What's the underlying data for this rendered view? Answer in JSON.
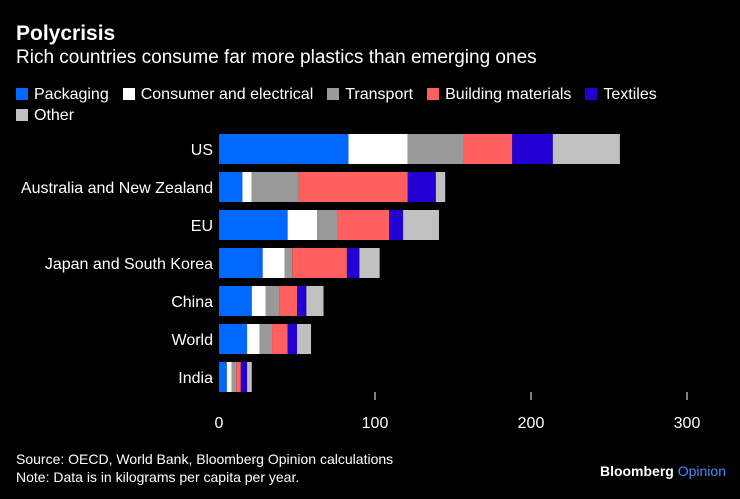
{
  "title": "Polycrisis",
  "subtitle": "Rich countries consume far more plastics than emerging ones",
  "source": "Source: OECD, World Bank, Bloomberg Opinion calculations",
  "note": "Note: Data is in kilograms per capita per year.",
  "logo": {
    "brand": "Bloomberg",
    "suffix": "Opinion",
    "suffix_color": "#4a8cff"
  },
  "chart_data": {
    "type": "bar",
    "orientation": "horizontal",
    "stacked": true,
    "categories": [
      "US",
      "Australia and New Zealand",
      "EU",
      "Japan and South Korea",
      "China",
      "World",
      "India"
    ],
    "series": [
      {
        "name": "Packaging",
        "color": "#0068ff",
        "values": [
          83,
          15,
          44,
          28,
          21,
          18,
          5
        ]
      },
      {
        "name": "Consumer and electrical",
        "color": "#ffffff",
        "values": [
          38,
          6,
          19,
          14,
          9,
          8,
          3
        ]
      },
      {
        "name": "Transport",
        "color": "#999999",
        "values": [
          36,
          30,
          13,
          5,
          9,
          8,
          3
        ]
      },
      {
        "name": "Building materials",
        "color": "#ff5f5f",
        "values": [
          31,
          70,
          33,
          35,
          11,
          10,
          3
        ]
      },
      {
        "name": "Textiles",
        "color": "#2200d4",
        "values": [
          26,
          18,
          9,
          8,
          6,
          6,
          4
        ]
      },
      {
        "name": "Other",
        "color": "#c0c0c0",
        "values": [
          43,
          6,
          23,
          13,
          11,
          9,
          3
        ]
      }
    ],
    "xlim": [
      0,
      300
    ],
    "xticks": [
      0,
      100,
      200,
      300
    ],
    "legend": "top",
    "grid": false
  }
}
